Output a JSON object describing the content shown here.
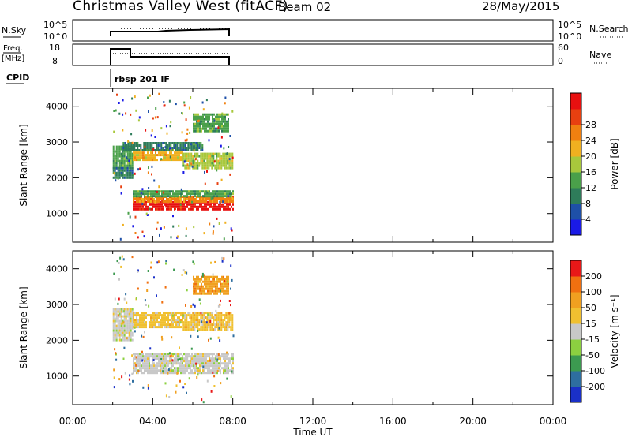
{
  "header": {
    "title": "Christmas Valley West (fitACF)",
    "beam": "Beam 02",
    "date": "28/May/2015"
  },
  "top_panels": {
    "nsky_label": "N.Sky",
    "nsky_ticks": [
      "10^5",
      "10^0"
    ],
    "nsky_right_ticks": [
      "10^5",
      "10^0"
    ],
    "nsearch_label": "N.Search",
    "freq_label": "Freq.",
    "freq_unit": "[MHz]",
    "freq_ticks": [
      "18",
      "8"
    ],
    "nave_ticks": [
      "60",
      "0"
    ],
    "nave_label": "Nave",
    "cpid_label": "CPID",
    "cpid_value": "rbsp 201 IF"
  },
  "chart_data": [
    {
      "type": "heatmap",
      "name": "power",
      "ylabel": "Slant Range [km]",
      "yticks": [
        1000,
        2000,
        3000,
        4000
      ],
      "ylim": [
        200,
        4500
      ],
      "xlim": [
        0,
        24
      ],
      "colorbar_label": "Power [dB]",
      "colorbar_ticks": [
        "28",
        "24",
        "20",
        "16",
        "12",
        "8",
        "4"
      ],
      "colors": [
        "#1a1ae6",
        "#1e50a8",
        "#2e7c5a",
        "#4aa04a",
        "#a8c83c",
        "#f0b020",
        "#f08010",
        "#e84010",
        "#e81010"
      ],
      "bands": [
        {
          "t0": 2.0,
          "t1": 3.0,
          "r0": 2300,
          "r1": 2900,
          "level": 3
        },
        {
          "t0": 2.0,
          "t1": 3.0,
          "r0": 2000,
          "r1": 2300,
          "level": 2
        },
        {
          "t0": 3.0,
          "t1": 8.0,
          "r0": 1100,
          "r1": 1350,
          "level": 8
        },
        {
          "t0": 3.0,
          "t1": 8.0,
          "r0": 1350,
          "r1": 1500,
          "level": 6
        },
        {
          "t0": 3.0,
          "t1": 8.0,
          "r0": 1500,
          "r1": 1650,
          "level": 3
        },
        {
          "t0": 3.0,
          "t1": 5.5,
          "r0": 2500,
          "r1": 2800,
          "level": 5
        },
        {
          "t0": 5.5,
          "t1": 8.0,
          "r0": 2300,
          "r1": 2700,
          "level": 4
        },
        {
          "t0": 2.5,
          "t1": 6.5,
          "r0": 2800,
          "r1": 3000,
          "level": 2
        },
        {
          "t0": 6.0,
          "t1": 7.8,
          "r0": 3300,
          "r1": 3800,
          "level": 3
        }
      ]
    },
    {
      "type": "heatmap",
      "name": "velocity",
      "ylabel": "Slant Range [km]",
      "yticks": [
        1000,
        2000,
        3000,
        4000
      ],
      "ylim": [
        200,
        4500
      ],
      "xlim": [
        0,
        24
      ],
      "colorbar_label": "Velocity [m s⁻¹]",
      "colorbar_ticks": [
        "200",
        "100",
        "50",
        "15",
        "-15",
        "-50",
        "-100",
        "-200"
      ],
      "colors": [
        "#1a30c8",
        "#2e6ea0",
        "#3c9a50",
        "#8cd040",
        "#c8c8c8",
        "#f0c030",
        "#f0a020",
        "#f07010",
        "#e81818"
      ],
      "bands": [
        {
          "t0": 2.0,
          "t1": 3.0,
          "r0": 2000,
          "r1": 2900,
          "level": 4
        },
        {
          "t0": 3.0,
          "t1": 8.0,
          "r0": 1100,
          "r1": 1650,
          "level": 4
        },
        {
          "t0": 3.0,
          "t1": 5.5,
          "r0": 2400,
          "r1": 2800,
          "level": 5
        },
        {
          "t0": 5.5,
          "t1": 8.0,
          "r0": 2300,
          "r1": 2800,
          "level": 5
        },
        {
          "t0": 6.0,
          "t1": 7.8,
          "r0": 3300,
          "r1": 3800,
          "level": 6
        }
      ]
    }
  ],
  "xaxis": {
    "label": "Time UT",
    "ticks": [
      "00:00",
      "04:00",
      "08:00",
      "12:00",
      "16:00",
      "20:00",
      "00:00"
    ]
  }
}
